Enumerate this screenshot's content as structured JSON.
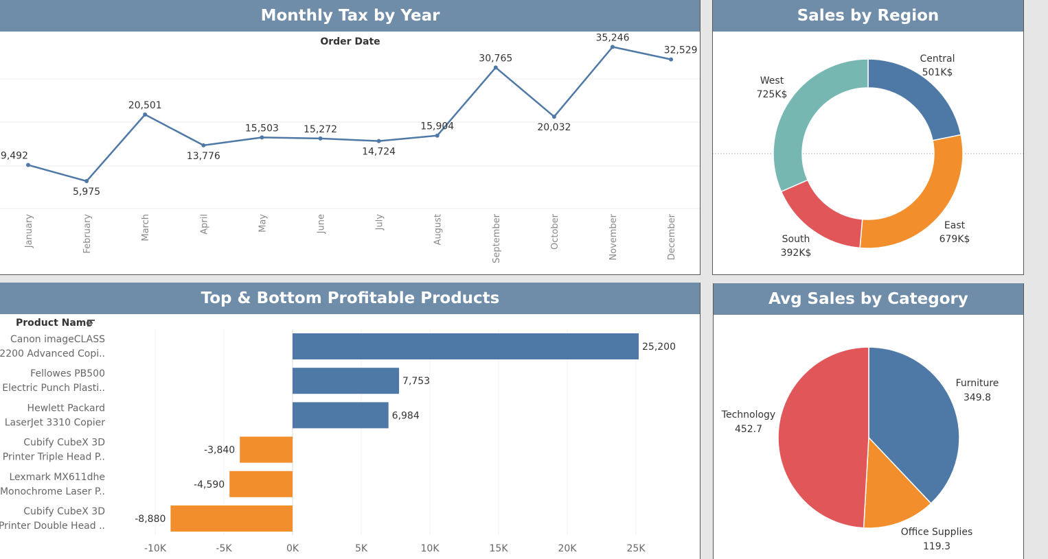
{
  "panels": {
    "monthly_tax": {
      "title": "Monthly Tax by Year",
      "column_header": "Order Date"
    },
    "sales_region": {
      "title": "Sales by Region"
    },
    "top_bottom": {
      "title": "Top & Bottom Profitable Products",
      "row_header": "Product Name",
      "sort_icon": "sort-descending-icon"
    },
    "avg_sales": {
      "title": "Avg Sales by Category"
    }
  },
  "chart_data": [
    {
      "type": "line",
      "title": "Monthly Tax by Year",
      "xlabel": "Order Date",
      "categories": [
        "January",
        "February",
        "March",
        "April",
        "May",
        "June",
        "July",
        "August",
        "September",
        "October",
        "November",
        "December"
      ],
      "values": [
        9492,
        5975,
        20501,
        13776,
        15503,
        15272,
        14724,
        15904,
        30765,
        20032,
        35246,
        32529
      ],
      "value_labels": [
        "9,492",
        "5,975",
        "20,501",
        "13,776",
        "15,503",
        "15,272",
        "14,724",
        "15,904",
        "30,765",
        "20,032",
        "35,246",
        "32,529"
      ],
      "ylim": [
        0,
        38000
      ],
      "grid": true,
      "color": "#4e79a7"
    },
    {
      "type": "pie",
      "style": "donut",
      "title": "Sales by Region",
      "slices": [
        {
          "name": "Central",
          "value": 501,
          "label": "501K$",
          "color": "#4e79a7"
        },
        {
          "name": "East",
          "value": 679,
          "label": "679K$",
          "color": "#f28e2b"
        },
        {
          "name": "South",
          "value": 392,
          "label": "392K$",
          "color": "#e15759"
        },
        {
          "name": "West",
          "value": 725,
          "label": "725K$",
          "color": "#76b7b2"
        }
      ]
    },
    {
      "type": "bar",
      "orientation": "horizontal",
      "title": "Top & Bottom Profitable Products",
      "ylabel": "Product Name",
      "categories": [
        [
          "Canon imageCLASS",
          "2200 Advanced Copi.."
        ],
        [
          "Fellowes PB500",
          "Electric Punch Plasti.."
        ],
        [
          "Hewlett Packard",
          "LaserJet 3310 Copier"
        ],
        [
          "Cubify CubeX 3D",
          "Printer Triple Head P.."
        ],
        [
          "Lexmark MX611dhe",
          "Monochrome Laser P.."
        ],
        [
          "Cubify CubeX 3D",
          "Printer Double Head .."
        ]
      ],
      "values": [
        25200,
        7753,
        6984,
        -3840,
        -4590,
        -8880
      ],
      "value_labels": [
        "25,200",
        "7,753",
        "6,984",
        "-3,840",
        "-4,590",
        "-8,880"
      ],
      "xlim": [
        -11000,
        29800
      ],
      "ticks": [
        -10000,
        -5000,
        0,
        5000,
        10000,
        15000,
        20000,
        25000
      ],
      "tick_labels": [
        "-10K",
        "-5K",
        "0K",
        "5K",
        "10K",
        "15K",
        "20K",
        "25K"
      ],
      "positive_color": "#4e79a7",
      "negative_color": "#f28e2b",
      "grid": true
    },
    {
      "type": "pie",
      "title": "Avg Sales by Category",
      "slices": [
        {
          "name": "Furniture",
          "value": 349.8,
          "label": "349.8",
          "color": "#4e79a7"
        },
        {
          "name": "Office Supplies",
          "value": 119.3,
          "label": "119.3",
          "color": "#f28e2b"
        },
        {
          "name": "Technology",
          "value": 452.7,
          "label": "452.7",
          "color": "#e15759"
        }
      ]
    }
  ]
}
